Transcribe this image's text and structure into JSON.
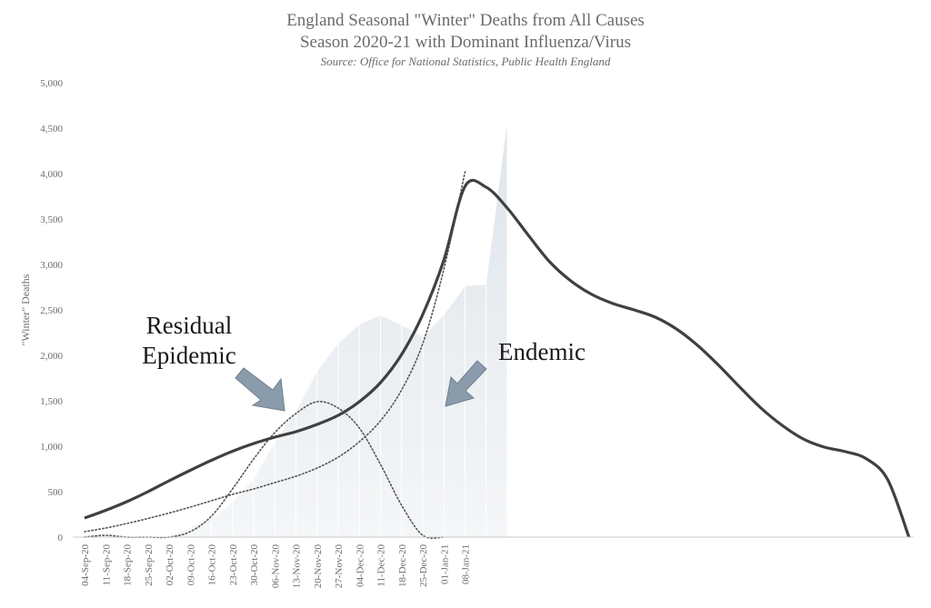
{
  "chart_data": {
    "type": "line",
    "title": "England Seasonal \"Winter\" Deaths from All Causes",
    "subtitle": "Season 2020-21 with Dominant Influenza/Virus",
    "source": "Source: Office for National Statistics, Public Health England",
    "ylabel": "\"Winter\" Deaths",
    "xlabel": "",
    "ylim": [
      0,
      5000
    ],
    "yticks": [
      0,
      500,
      1000,
      1500,
      2000,
      2500,
      3000,
      3500,
      4000,
      4500,
      5000
    ],
    "ytick_labels": [
      "0",
      "500",
      "1,000",
      "1,500",
      "2,000",
      "2,500",
      "3,000",
      "3,500",
      "4,000",
      "4,500",
      "5,000"
    ],
    "x_tick_labels": [
      "04-Sep-20",
      "11-Sep-20",
      "18-Sep-20",
      "25-Sep-20",
      "02-Oct-20",
      "09-Oct-20",
      "16-Oct-20",
      "23-Oct-20",
      "30-Oct-20",
      "06-Nov-20",
      "13-Nov-20",
      "20-Nov-20",
      "27-Nov-20",
      "04-Dec-20",
      "11-Dec-20",
      "18-Dec-20",
      "25-Dec-20",
      "01-Jan-21",
      "08-Jan-21"
    ],
    "n_points": 40,
    "grid": false,
    "colors": {
      "area": "#dfe5ea",
      "curve": "#404040",
      "dotted": "#555555",
      "arrow": "#8a9bab",
      "text": "#6b6b6b"
    },
    "series": [
      {
        "kind": "area",
        "values": [
          0,
          0,
          0,
          0,
          0,
          110,
          200,
          380,
          640,
          1040,
          1380,
          1820,
          2130,
          2340,
          2440,
          2330,
          2210,
          2440,
          2760,
          2780,
          4560
        ]
      },
      {
        "kind": "solid",
        "values": [
          210,
          295,
          390,
          500,
          620,
          735,
          845,
          945,
          1030,
          1100,
          1160,
          1240,
          1340,
          1490,
          1700,
          2010,
          2450,
          3050,
          3860,
          3850,
          3620,
          3320,
          3030,
          2820,
          2670,
          2570,
          2500,
          2420,
          2290,
          2110,
          1890,
          1650,
          1420,
          1230,
          1080,
          990,
          940,
          860,
          630,
          0
        ]
      },
      {
        "kind": "dotted",
        "values": [
          60,
          100,
          150,
          205,
          265,
          330,
          400,
          470,
          530,
          600,
          670,
          760,
          880,
          1050,
          1280,
          1620,
          2130,
          2950,
          4020
        ]
      },
      {
        "kind": "dotted",
        "values": [
          0,
          20,
          0,
          0,
          0,
          60,
          230,
          530,
          860,
          1150,
          1360,
          1490,
          1420,
          1200,
          800,
          350,
          20,
          0
        ]
      }
    ],
    "annotations": [
      {
        "text": "Residual",
        "points_to": "Residual Epidemic curve"
      },
      {
        "text": "Epidemic",
        "points_to": "Residual Epidemic curve"
      },
      {
        "text": "Endemic",
        "points_to": "Endemic curve"
      }
    ]
  }
}
